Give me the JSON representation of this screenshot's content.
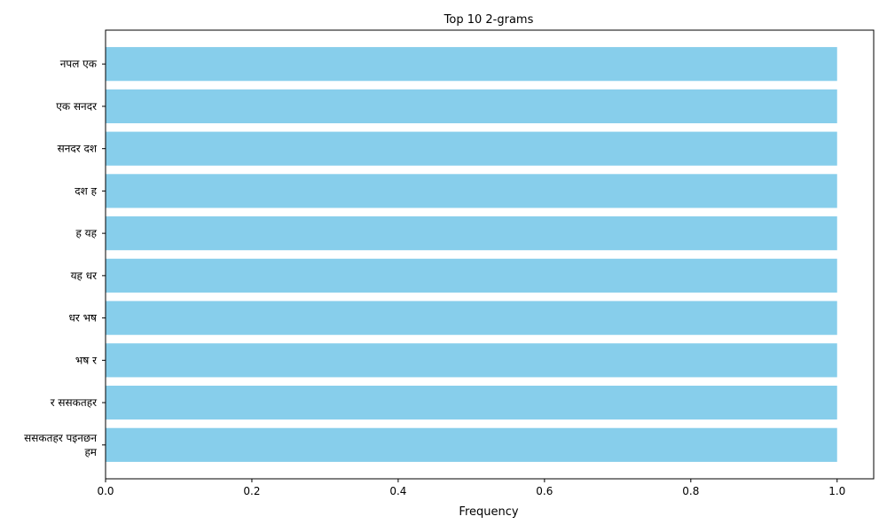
{
  "chart_data": {
    "type": "bar",
    "orientation": "horizontal",
    "title": "Top 10 2-grams",
    "xlabel": "Frequency",
    "ylabel": "",
    "xlim": [
      0,
      1.05
    ],
    "x_ticks": [
      "0.0",
      "0.2",
      "0.4",
      "0.6",
      "0.8",
      "1.0"
    ],
    "x_tick_values": [
      0,
      0.2,
      0.4,
      0.6,
      0.8,
      1.0
    ],
    "categories": [
      [
        "नपल एक"
      ],
      [
        "एक सनदर"
      ],
      [
        "सनदर दश"
      ],
      [
        "दश ह"
      ],
      [
        "ह यह"
      ],
      [
        "यह धर"
      ],
      [
        "धर भष"
      ],
      [
        "भष र"
      ],
      [
        "र ससकतहर"
      ],
      [
        "ससकतहर पइनछन",
        "हम"
      ]
    ],
    "values": [
      1,
      1,
      1,
      1,
      1,
      1,
      1,
      1,
      1,
      1
    ],
    "bar_color": "#87ceeb",
    "grid": false,
    "legend": "none"
  }
}
